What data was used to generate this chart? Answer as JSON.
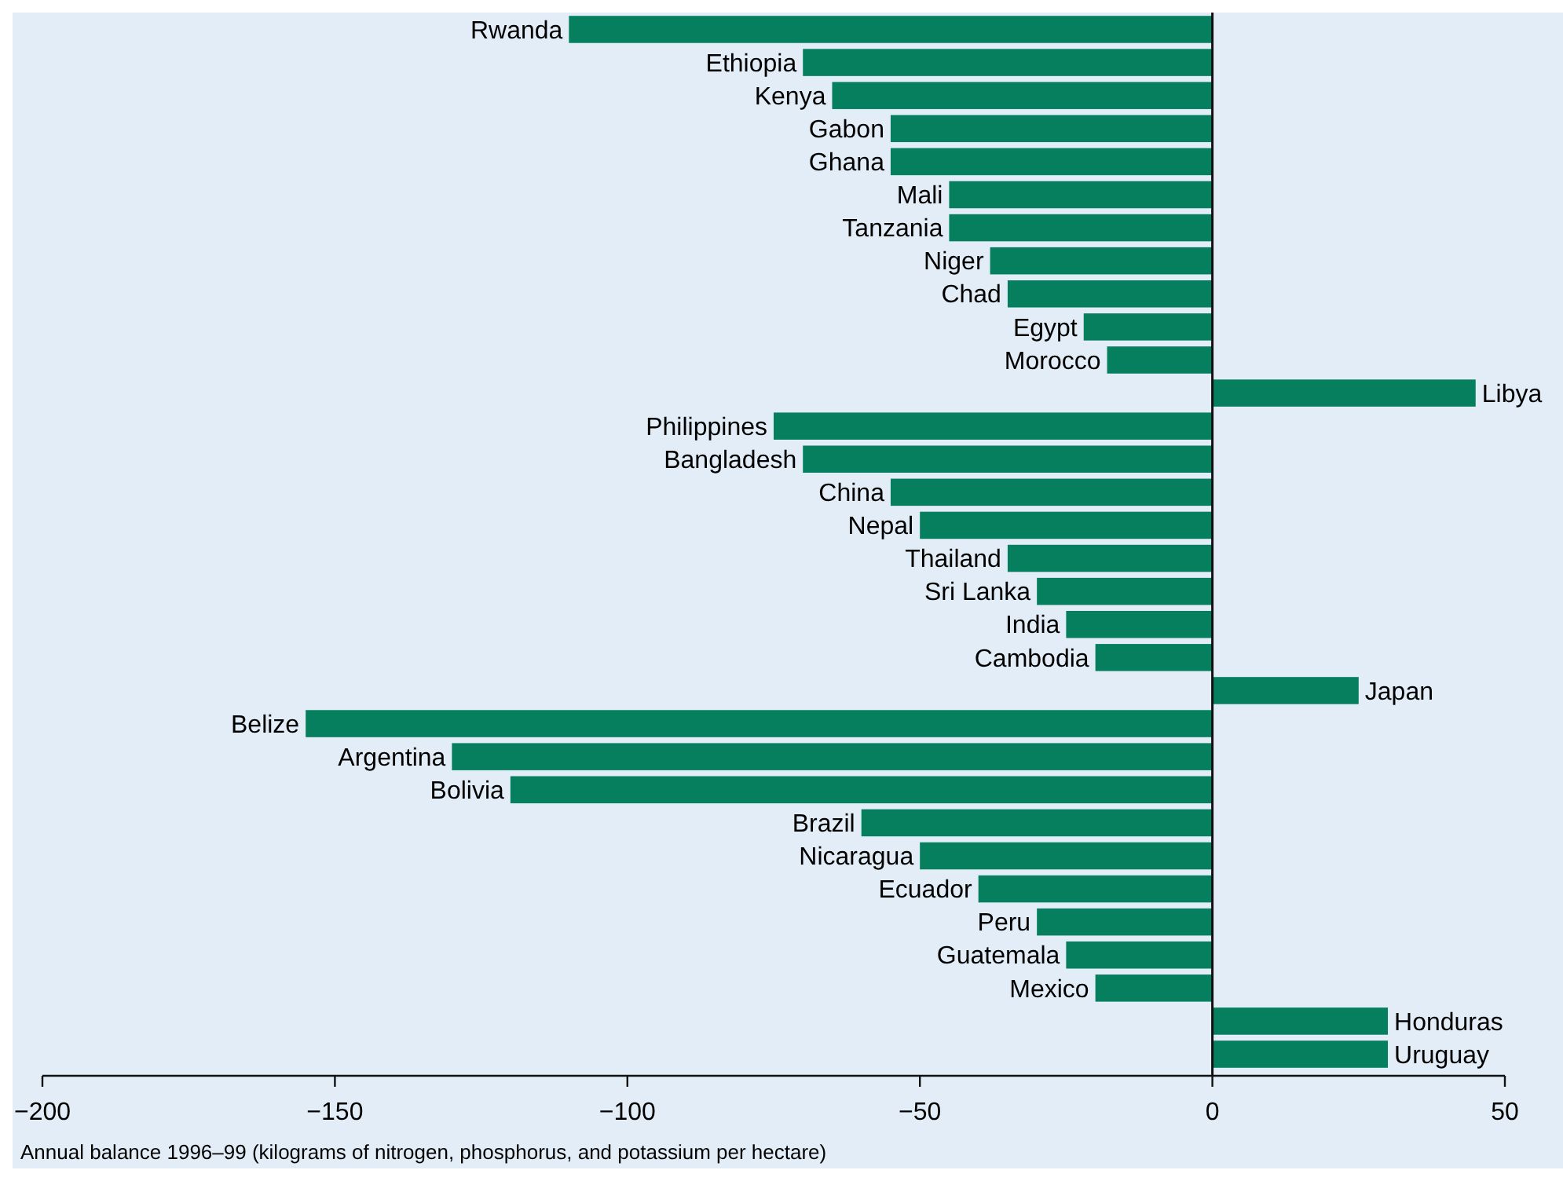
{
  "chart_data": {
    "type": "bar",
    "orientation": "horizontal",
    "xlabel": "Annual balance 1996–99 (kilograms of nitrogen, phosphorus, and potassium per hectare)",
    "categories": [
      "Rwanda",
      "Ethiopia",
      "Kenya",
      "Gabon",
      "Ghana",
      "Mali",
      "Tanzania",
      "Niger",
      "Chad",
      "Egypt",
      "Morocco",
      "Libya",
      "Philippines",
      "Bangladesh",
      "China",
      "Nepal",
      "Thailand",
      "Sri Lanka",
      "India",
      "Cambodia",
      "Japan",
      "Belize",
      "Argentina",
      "Bolivia",
      "Brazil",
      "Nicaragua",
      "Ecuador",
      "Peru",
      "Guatemala",
      "Mexico",
      "Honduras",
      "Uruguay"
    ],
    "values": [
      -110,
      -70,
      -65,
      -55,
      -55,
      -45,
      -45,
      -38,
      -35,
      -22,
      -18,
      45,
      -75,
      -70,
      -55,
      -50,
      -35,
      -30,
      -25,
      -20,
      25,
      -155,
      -130,
      -120,
      -60,
      -50,
      -40,
      -30,
      -25,
      -20,
      30,
      30
    ],
    "color": "#067f5e",
    "xlim": [
      -200,
      50
    ],
    "xticks": [
      {
        "value": -200,
        "label": "−200"
      },
      {
        "value": -150,
        "label": "−150"
      },
      {
        "value": -100,
        "label": "−100"
      },
      {
        "value": -50,
        "label": "−50"
      },
      0,
      50
    ]
  }
}
